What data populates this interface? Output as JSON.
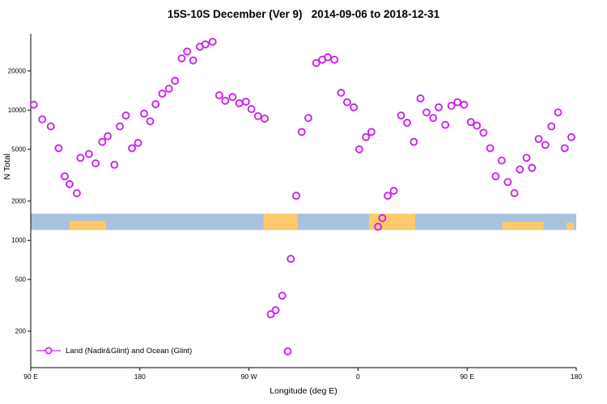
{
  "chart_data": {
    "type": "scatter",
    "title": "15S-10S December (Ver 9)   2014-09-06 to 2018-12-31",
    "xlabel": "Longitude (deg E)",
    "ylabel": "N Total",
    "x_axis": {
      "range_deg": [
        90,
        540
      ],
      "ticks": [
        {
          "pos": 90,
          "label": "90 E"
        },
        {
          "pos": 180,
          "label": "180"
        },
        {
          "pos": 270,
          "label": "90 W"
        },
        {
          "pos": 360,
          "label": "0"
        },
        {
          "pos": 450,
          "label": "90 E"
        },
        {
          "pos": 540,
          "label": "180"
        }
      ]
    },
    "y_axis": {
      "scale": "log",
      "ticks": [
        200,
        500,
        1000,
        2000,
        5000,
        10000,
        20000
      ],
      "range": [
        105,
        38500
      ]
    },
    "legend": {
      "label": "Land (Nadir&Glint) and Ocean (Glint)"
    },
    "point_color": "#cc22ee",
    "band": {
      "ocean_color": "#a8c2dd",
      "land_color": "#fdc96a",
      "value_range": [
        1200,
        1600
      ],
      "land_segments": [
        {
          "from": 122,
          "to": 152,
          "frac": 0.55
        },
        {
          "from": 282,
          "to": 310,
          "frac": 1.0
        },
        {
          "from": 369,
          "to": 407,
          "frac": 1.0
        },
        {
          "from": 479,
          "to": 513,
          "frac": 0.5
        },
        {
          "from": 532,
          "to": 538,
          "frac": 0.45
        }
      ]
    },
    "series": [
      {
        "name": "Land (Nadir&Glint) and Ocean (Glint)",
        "color": "#cc22ee",
        "points": [
          [
            92.5,
            11000
          ],
          [
            99.5,
            8500
          ],
          [
            106.5,
            7500
          ],
          [
            113,
            5100
          ],
          [
            118,
            3100
          ],
          [
            122,
            2700
          ],
          [
            128,
            2300
          ],
          [
            131,
            4300
          ],
          [
            138,
            4600
          ],
          [
            143.5,
            3900
          ],
          [
            149,
            5700
          ],
          [
            153.5,
            6300
          ],
          [
            159,
            3800
          ],
          [
            163.5,
            7500
          ],
          [
            168.5,
            9100
          ],
          [
            173.5,
            5100
          ],
          [
            178.5,
            5600
          ],
          [
            183.5,
            9400
          ],
          [
            188.5,
            8200
          ],
          [
            193,
            11100
          ],
          [
            198.5,
            13400
          ],
          [
            204,
            14600
          ],
          [
            209,
            16800
          ],
          [
            214.5,
            25000
          ],
          [
            219,
            28200
          ],
          [
            224,
            24100
          ],
          [
            229.5,
            30700
          ],
          [
            234,
            32000
          ],
          [
            240,
            33500
          ],
          [
            245.5,
            13000
          ],
          [
            250.5,
            11800
          ],
          [
            256.5,
            12600
          ],
          [
            262,
            11300
          ],
          [
            267.5,
            11600
          ],
          [
            272,
            10200
          ],
          [
            277.5,
            9000
          ],
          [
            283,
            8600
          ],
          [
            288,
            270
          ],
          [
            292,
            290
          ],
          [
            297.5,
            375
          ],
          [
            302,
            140
          ],
          [
            304.5,
            720
          ],
          [
            309,
            2200
          ],
          [
            313.5,
            6800
          ],
          [
            319,
            8700
          ],
          [
            325.5,
            23000
          ],
          [
            330.5,
            24400
          ],
          [
            335,
            25500
          ],
          [
            340.5,
            24400
          ],
          [
            346,
            13600
          ],
          [
            351,
            11500
          ],
          [
            356.5,
            10500
          ],
          [
            361,
            5000
          ],
          [
            366.5,
            6200
          ],
          [
            371,
            6800
          ],
          [
            376.5,
            1270
          ],
          [
            380,
            1480
          ],
          [
            384.5,
            2200
          ],
          [
            389.5,
            2400
          ],
          [
            395.5,
            9100
          ],
          [
            400.5,
            8000
          ],
          [
            406,
            5700
          ],
          [
            411.5,
            12300
          ],
          [
            416.5,
            9600
          ],
          [
            422,
            8700
          ],
          [
            426.5,
            10500
          ],
          [
            432,
            7700
          ],
          [
            437,
            10800
          ],
          [
            442,
            11500
          ],
          [
            447.5,
            11000
          ],
          [
            453,
            8100
          ],
          [
            458,
            7600
          ],
          [
            463.5,
            6700
          ],
          [
            469,
            5100
          ],
          [
            473.5,
            3100
          ],
          [
            478.5,
            4100
          ],
          [
            483.5,
            2800
          ],
          [
            489,
            2300
          ],
          [
            493.5,
            3500
          ],
          [
            499,
            4300
          ],
          [
            503.5,
            3600
          ],
          [
            509,
            6000
          ],
          [
            514.5,
            5400
          ],
          [
            519.5,
            7500
          ],
          [
            525,
            9600
          ],
          [
            530.5,
            5100
          ],
          [
            536,
            6200
          ]
        ]
      }
    ]
  }
}
